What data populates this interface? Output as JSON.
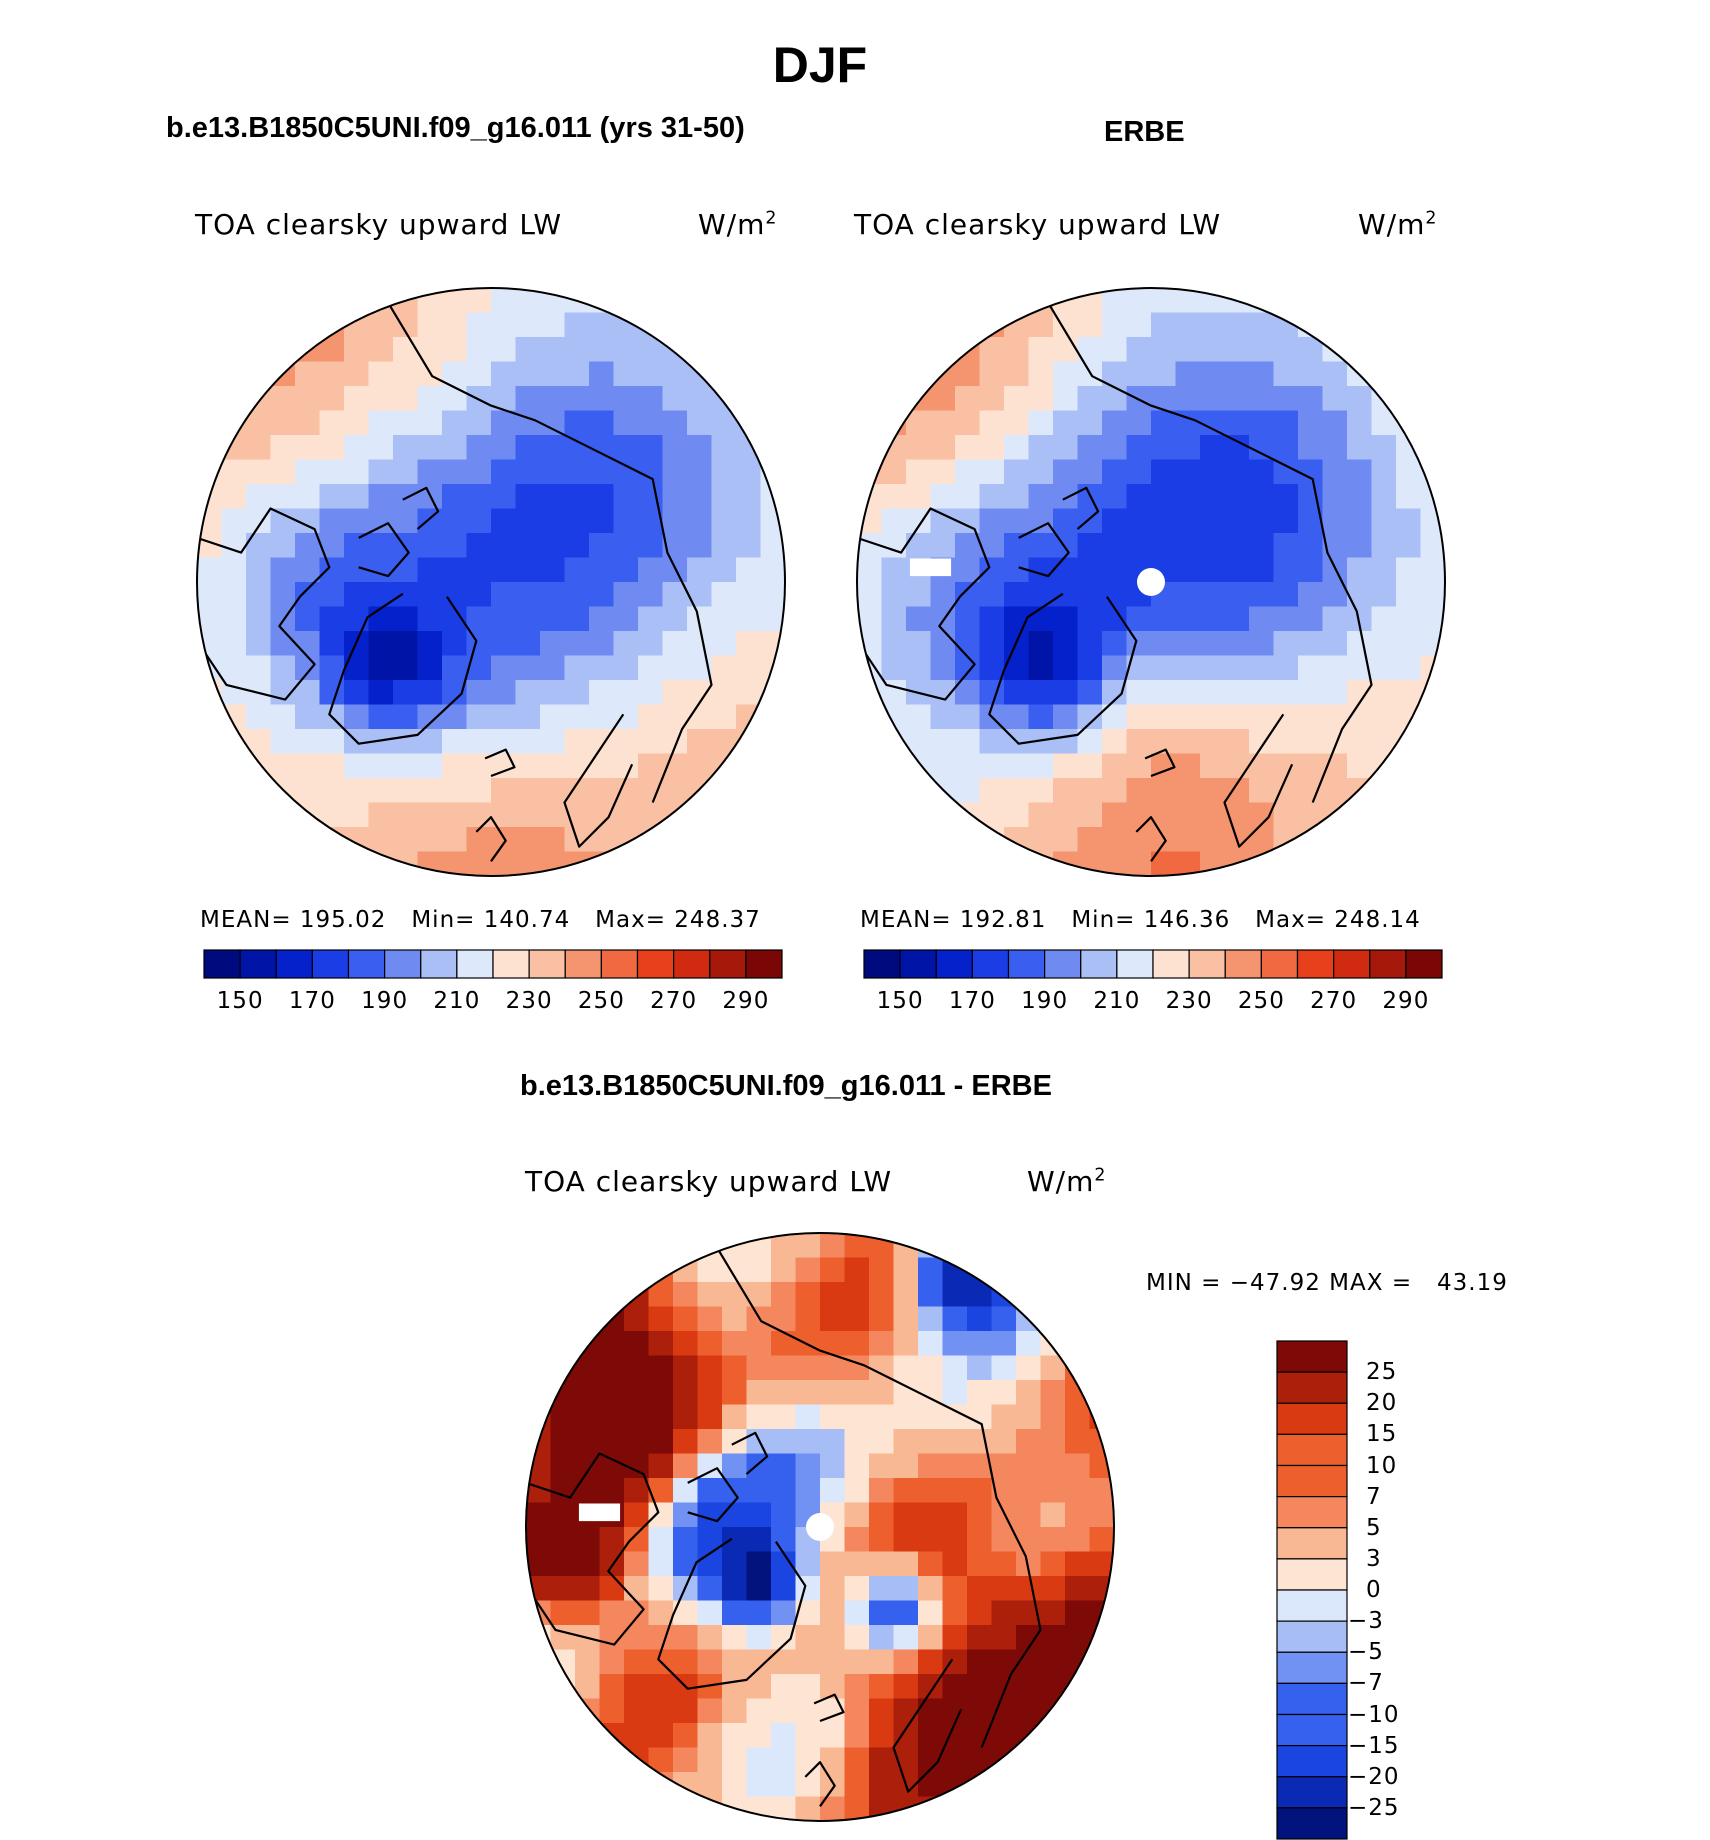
{
  "page": {
    "title": "DJF"
  },
  "colors": {
    "seq": [
      "#000a7f",
      "#0015a8",
      "#0521cc",
      "#1a3de6",
      "#3a5ff0",
      "#6f8bf2",
      "#a9bff6",
      "#dde8fb",
      "#fde2d1",
      "#f9c0a4",
      "#f5956f",
      "#f06940",
      "#e8401c",
      "#d02a10",
      "#a5180a",
      "#7b0606"
    ],
    "div": [
      "#02137d",
      "#0a2ab5",
      "#1a45e0",
      "#3561ee",
      "#7191f3",
      "#a7bdf6",
      "#dbe7fb",
      "#fde4d3",
      "#f9b894",
      "#f5875e",
      "#ee5f2e",
      "#d93a12",
      "#ab1f0b",
      "#7d0a07"
    ],
    "land_outline": "#000000"
  },
  "chart_data": [
    {
      "type": "heatmap",
      "projection": "north-polar-stereographic",
      "panel_title": "b.e13.B1850C5UNI.f09_g16.011 (yrs 31-50)",
      "variable": "TOA clearsky upward LW",
      "units": "W/m",
      "units_sup": "2",
      "stats": {
        "mean_label": "MEAN=",
        "mean": "195.02",
        "min_label": "Min=",
        "min": "140.74",
        "max_label": "Max=",
        "max": "248.37"
      },
      "colorbar": {
        "orientation": "horizontal",
        "levels": [
          140,
          150,
          160,
          170,
          180,
          190,
          200,
          210,
          220,
          230,
          240,
          250,
          260,
          270,
          280,
          290,
          300
        ],
        "tick_labels": [
          "150",
          "170",
          "190",
          "210",
          "230",
          "250",
          "270",
          "290"
        ]
      },
      "field_notes": "Cold minimum (~140-160) over Greenland and the central Arctic basin; warm values (230-250) over North Pacific and North Atlantic",
      "polar_gap": false
    },
    {
      "type": "heatmap",
      "projection": "north-polar-stereographic",
      "panel_title": "ERBE",
      "variable": "TOA clearsky upward LW",
      "units": "W/m",
      "units_sup": "2",
      "stats": {
        "mean_label": "MEAN=",
        "mean": "192.81",
        "min_label": "Min=",
        "min": "146.36",
        "max_label": "Max=",
        "max": "248.14"
      },
      "colorbar": {
        "orientation": "horizontal",
        "levels": [
          140,
          150,
          160,
          170,
          180,
          190,
          200,
          210,
          220,
          230,
          240,
          250,
          260,
          270,
          280,
          290,
          300
        ],
        "tick_labels": [
          "150",
          "170",
          "190",
          "210",
          "230",
          "250",
          "270",
          "290"
        ]
      },
      "field_notes": "Similar pattern to model; missing data at the North Pole",
      "polar_gap": true
    },
    {
      "type": "heatmap",
      "projection": "north-polar-stereographic",
      "panel_title": "b.e13.B1850C5UNI.f09_g16.011 - ERBE",
      "variable": "TOA clearsky upward LW",
      "units": "W/m",
      "units_sup": "2",
      "stats": {
        "min_label": "MIN =",
        "min": "−47.92",
        "max_label": "MAX =",
        "max": "43.19"
      },
      "colorbar": {
        "orientation": "vertical",
        "levels": [
          "-30",
          "-25",
          "-20",
          "-15",
          "-10",
          "-7",
          "-5",
          "-3",
          "0",
          "3",
          "5",
          "7",
          "10",
          "15",
          "20",
          "25",
          "30"
        ],
        "tick_labels": [
          "25",
          "20",
          "15",
          "10",
          "7",
          "5",
          "3",
          "0",
          "−3",
          "−5",
          "−7",
          "−10",
          "−15",
          "−20",
          "−25"
        ]
      },
      "field_notes": "Positive differences over Pacific, Atlantic and Eurasia; negative differences over Canadian Arctic, Greenland coasts and Siberia",
      "polar_gap": true
    }
  ]
}
